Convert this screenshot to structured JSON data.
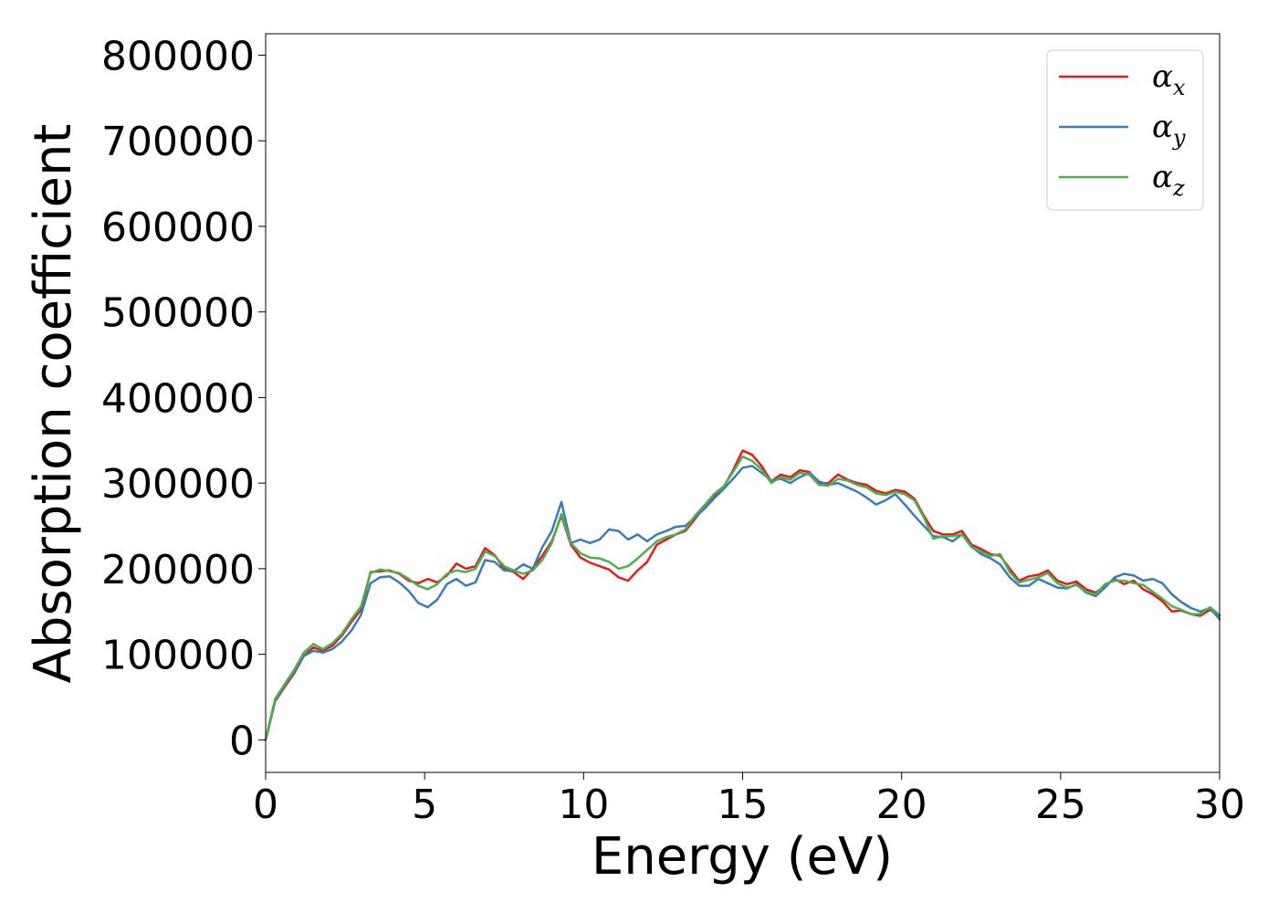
{
  "chart_data": {
    "type": "line",
    "xlabel": "Energy (eV)",
    "ylabel": "Absorption coefficient",
    "xlim": [
      0,
      30
    ],
    "ylim": [
      -38000,
      825000
    ],
    "xticks": [
      "0",
      "5",
      "10",
      "15",
      "20",
      "25",
      "30"
    ],
    "yticks": [
      "0",
      "100000",
      "200000",
      "300000",
      "400000",
      "500000",
      "600000",
      "700000",
      "800000"
    ],
    "grid": false,
    "legend_position": "top-right",
    "x": [
      0,
      0.3,
      0.6,
      0.9,
      1.2,
      1.5,
      1.8,
      2.1,
      2.4,
      2.7,
      3.0,
      3.3,
      3.6,
      3.9,
      4.2,
      4.5,
      4.8,
      5.1,
      5.4,
      5.7,
      6.0,
      6.3,
      6.6,
      6.9,
      7.2,
      7.5,
      7.8,
      8.1,
      8.4,
      8.7,
      9.0,
      9.3,
      9.6,
      9.9,
      10.2,
      10.5,
      10.8,
      11.1,
      11.4,
      11.7,
      12.0,
      12.3,
      12.6,
      12.9,
      13.2,
      13.5,
      13.8,
      14.1,
      14.4,
      14.7,
      15.0,
      15.3,
      15.6,
      15.9,
      16.2,
      16.5,
      16.8,
      17.1,
      17.4,
      17.7,
      18.0,
      18.3,
      18.6,
      18.9,
      19.2,
      19.5,
      19.8,
      20.1,
      20.4,
      20.7,
      21.0,
      21.3,
      21.6,
      21.9,
      22.2,
      22.5,
      22.8,
      23.1,
      23.4,
      23.7,
      24.0,
      24.3,
      24.6,
      24.9,
      25.2,
      25.5,
      25.8,
      26.1,
      26.4,
      26.7,
      27.0,
      27.3,
      27.6,
      27.9,
      28.2,
      28.5,
      28.8,
      29.1,
      29.4,
      29.7,
      30.0
    ],
    "series": [
      {
        "name": "α",
        "subscript": "x",
        "color": "#e41a1c",
        "values": [
          0,
          45000,
          62000,
          78000,
          98000,
          108000,
          104000,
          110000,
          122000,
          138000,
          152000,
          196000,
          197000,
          198000,
          194000,
          186000,
          183000,
          188000,
          184000,
          192000,
          206000,
          200000,
          203000,
          224000,
          216000,
          200000,
          196000,
          188000,
          200000,
          215000,
          232000,
          262000,
          228000,
          213000,
          207000,
          203000,
          199000,
          190000,
          186000,
          198000,
          208000,
          228000,
          234000,
          240000,
          244000,
          258000,
          272000,
          285000,
          295000,
          315000,
          338000,
          333000,
          320000,
          302000,
          310000,
          307000,
          315000,
          313000,
          300000,
          300000,
          310000,
          304000,
          300000,
          298000,
          291000,
          288000,
          292000,
          290000,
          282000,
          262000,
          244000,
          240000,
          240000,
          244000,
          228000,
          223000,
          217000,
          215000,
          200000,
          186000,
          191000,
          193000,
          198000,
          186000,
          182000,
          185000,
          176000,
          172000,
          180000,
          188000,
          182000,
          186000,
          176000,
          170000,
          162000,
          150000,
          151000,
          147000,
          145000,
          152000,
          145000
        ]
      },
      {
        "name": "α",
        "subscript": "y",
        "color": "#377eb8",
        "values": [
          0,
          46000,
          64000,
          80000,
          98000,
          104000,
          102000,
          106000,
          115000,
          128000,
          146000,
          183000,
          190000,
          191000,
          184000,
          174000,
          160000,
          155000,
          164000,
          182000,
          188000,
          180000,
          184000,
          210000,
          208000,
          198000,
          197000,
          205000,
          200000,
          225000,
          244000,
          278000,
          230000,
          234000,
          230000,
          234000,
          246000,
          244000,
          234000,
          240000,
          232000,
          240000,
          244000,
          249000,
          250000,
          260000,
          270000,
          282000,
          293000,
          305000,
          318000,
          320000,
          312000,
          303000,
          305000,
          300000,
          307000,
          312000,
          302000,
          298000,
          300000,
          295000,
          290000,
          283000,
          275000,
          280000,
          287000,
          275000,
          262000,
          250000,
          238000,
          237000,
          232000,
          240000,
          226000,
          217000,
          212000,
          205000,
          190000,
          180000,
          180000,
          188000,
          183000,
          178000,
          177000,
          182000,
          172000,
          168000,
          178000,
          190000,
          194000,
          192000,
          186000,
          188000,
          183000,
          170000,
          161000,
          154000,
          150000,
          154000,
          141000
        ]
      },
      {
        "name": "α",
        "subscript": "z",
        "color": "#4daf4a",
        "values": [
          0,
          48000,
          65000,
          82000,
          102000,
          112000,
          106000,
          113000,
          124000,
          141000,
          156000,
          195000,
          199000,
          197000,
          195000,
          188000,
          180000,
          176000,
          182000,
          194000,
          198000,
          196000,
          200000,
          220000,
          215000,
          203000,
          198000,
          194000,
          198000,
          210000,
          230000,
          264000,
          230000,
          218000,
          213000,
          212000,
          208000,
          200000,
          203000,
          212000,
          222000,
          232000,
          237000,
          240000,
          246000,
          262000,
          274000,
          287000,
          296000,
          313000,
          331000,
          326000,
          316000,
          300000,
          307000,
          304000,
          312000,
          310000,
          298000,
          297000,
          305000,
          303000,
          298000,
          295000,
          288000,
          286000,
          290000,
          287000,
          280000,
          260000,
          235000,
          238000,
          238000,
          240000,
          225000,
          220000,
          215000,
          217000,
          196000,
          184000,
          187000,
          190000,
          195000,
          183000,
          178000,
          181000,
          173000,
          170000,
          182000,
          186000,
          186000,
          183000,
          181000,
          173000,
          165000,
          156000,
          152000,
          147000,
          147000,
          155000,
          146000
        ]
      }
    ]
  }
}
